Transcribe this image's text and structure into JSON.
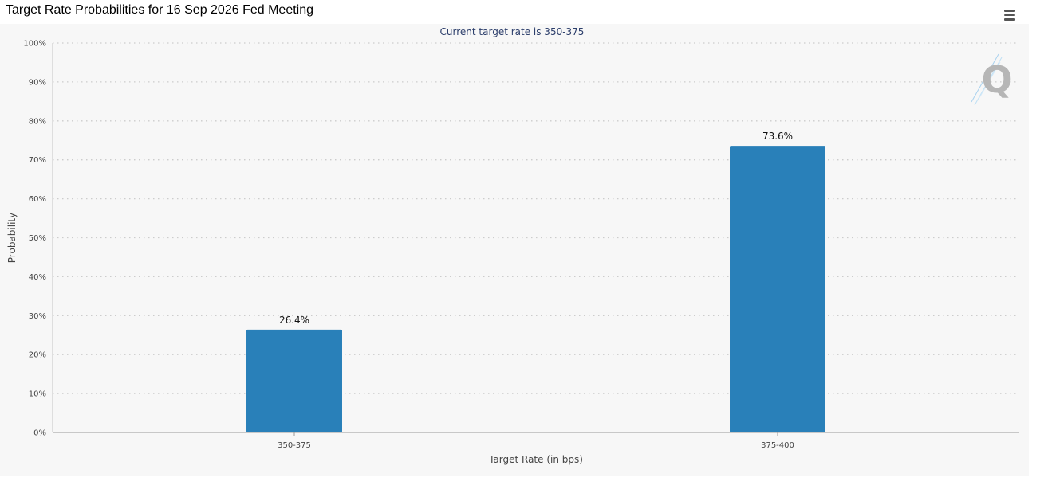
{
  "page": {
    "title": "Target Rate Probabilities for 16 Sep 2026 Fed Meeting"
  },
  "chart_data": {
    "type": "bar",
    "title": "Target Rate Probabilities for 16 Sep 2026 Fed Meeting",
    "subtitle": "Current target rate is 350-375",
    "categories": [
      "350-375",
      "375-400"
    ],
    "values": [
      26.4,
      73.6
    ],
    "data_labels": [
      "26.4%",
      "73.6%"
    ],
    "xlabel": "Target Rate (in bps)",
    "ylabel": "Probability",
    "ylim": [
      0,
      100
    ],
    "yticks": [
      "0%",
      "10%",
      "20%",
      "30%",
      "40%",
      "50%",
      "60%",
      "70%",
      "80%",
      "90%",
      "100%"
    ],
    "grid": true,
    "legend": "none",
    "colors": {
      "bar": "#2980b9",
      "subtitle": "#2c3e6b",
      "axis_text": "#444444",
      "gridline": "#cccccc",
      "background": "#f7f7f7"
    }
  }
}
